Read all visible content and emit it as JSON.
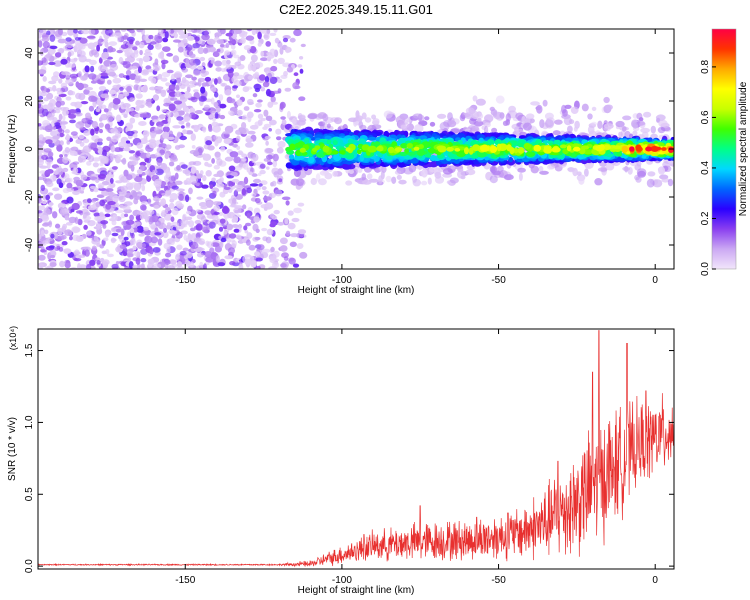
{
  "title": "C2E2.2025.349.15.11.G01",
  "chart_data": [
    {
      "type": "heatmap",
      "xlabel": "Height of straight line (km)",
      "ylabel": "Frequency (Hz)",
      "xlim": [
        -197,
        6
      ],
      "ylim": [
        -50,
        50
      ],
      "x_ticks": [
        -150,
        -100,
        -50,
        0
      ],
      "y_ticks": [
        -40,
        -20,
        0,
        20,
        40
      ],
      "colorbar": {
        "label": "Normalized spectral amplitude",
        "range": [
          0,
          0.95
        ],
        "ticks": [
          0.0,
          0.2,
          0.4,
          0.6,
          0.8
        ],
        "colormap": [
          "#f2e6fb",
          "#cba8f3",
          "#8a3ff0",
          "#2a00ff",
          "#0066ff",
          "#00d8ff",
          "#00ff88",
          "#40ff00",
          "#c8ff00",
          "#ffff00",
          "#ffaa00",
          "#ff3300",
          "#ff0044"
        ]
      },
      "regions": [
        {
          "description": "scattered noise",
          "x_range": [
            -197,
            -112
          ],
          "freq_range": [
            -50,
            50
          ],
          "amplitude": [
            0.03,
            0.2
          ]
        },
        {
          "description": "signal band",
          "x_range": [
            -117,
            6
          ],
          "center_freq": 0,
          "half_width": [
            4,
            8
          ],
          "amplitude": [
            0.2,
            0.95
          ]
        }
      ]
    },
    {
      "type": "line",
      "xlabel": "Height of straight line (km)",
      "ylabel": "SNR (10 * v/v)",
      "y_multiplier": "(x10⁴)",
      "xlim": [
        -197,
        6
      ],
      "ylim": [
        -0.02,
        1.65
      ],
      "x_ticks": [
        -150,
        -100,
        -50,
        0
      ],
      "y_ticks": [
        0.0,
        0.5,
        1.0,
        1.5
      ],
      "series": [
        {
          "color": "#e8302f",
          "envelope": [
            {
              "x": -197,
              "base": 0.01,
              "amp": 0.005
            },
            {
              "x": -120,
              "base": 0.01,
              "amp": 0.006
            },
            {
              "x": -110,
              "base": 0.015,
              "amp": 0.03
            },
            {
              "x": -100,
              "base": 0.08,
              "amp": 0.08
            },
            {
              "x": -90,
              "base": 0.14,
              "amp": 0.12
            },
            {
              "x": -75,
              "base": 0.17,
              "amp": 0.16
            },
            {
              "x": -60,
              "base": 0.18,
              "amp": 0.17
            },
            {
              "x": -45,
              "base": 0.22,
              "amp": 0.2
            },
            {
              "x": -35,
              "base": 0.3,
              "amp": 0.3
            },
            {
              "x": -25,
              "base": 0.45,
              "amp": 0.45
            },
            {
              "x": -15,
              "base": 0.65,
              "amp": 0.5
            },
            {
              "x": -5,
              "base": 0.85,
              "amp": 0.35
            },
            {
              "x": 6,
              "base": 0.95,
              "amp": 0.3
            }
          ],
          "peaks": [
            {
              "x": -93,
              "y": 0.22
            },
            {
              "x": -75,
              "y": 0.42
            },
            {
              "x": -57,
              "y": 0.34
            },
            {
              "x": -47,
              "y": 0.37
            },
            {
              "x": -31,
              "y": 0.73
            },
            {
              "x": -20,
              "y": 1.35
            },
            {
              "x": -18,
              "y": 1.64
            },
            {
              "x": -9,
              "y": 1.55
            },
            {
              "x": -3,
              "y": 1.22
            }
          ]
        }
      ]
    }
  ]
}
